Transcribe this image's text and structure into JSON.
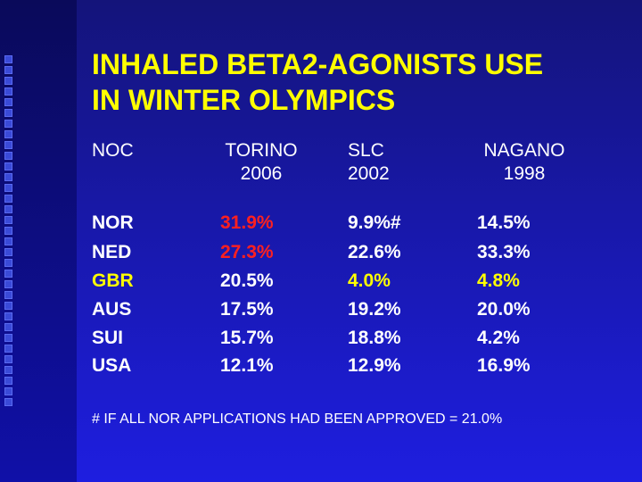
{
  "title": {
    "lines": [
      "INHALED BETA2-AGONISTS USE",
      "IN WINTER OLYMPICS"
    ]
  },
  "table": {
    "header": [
      [
        "NOC"
      ],
      [
        "TORINO",
        "2006"
      ],
      [
        "SLC",
        "2002"
      ],
      [
        "NAGANO",
        "1998"
      ]
    ],
    "rows": [
      [
        "NOR",
        "31.9%",
        "9.9%#",
        "14.5%"
      ],
      [
        "NED",
        "27.3%",
        "22.6%",
        "33.3%"
      ],
      [
        "GBR",
        "20.5%",
        "4.0%",
        "4.8%"
      ],
      [
        "AUS",
        "17.5%",
        "19.2%",
        "20.0%"
      ],
      [
        "SUI",
        "15.7%",
        "18.8%",
        "4.2%"
      ],
      [
        "USA",
        "12.1%",
        "12.9%",
        "16.9%"
      ]
    ]
  },
  "footnote": "# IF ALL NOR APPLICATIONS HAD BEEN APPROVED = 21.0%"
}
